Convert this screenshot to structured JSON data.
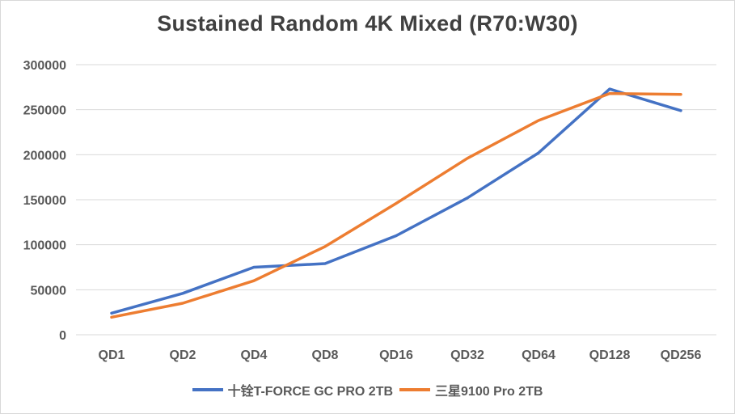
{
  "chart_data": {
    "type": "line",
    "title": "Sustained Random 4K Mixed (R70:W30)",
    "categories": [
      "QD1",
      "QD2",
      "QD4",
      "QD8",
      "QD16",
      "QD32",
      "QD64",
      "QD128",
      "QD256"
    ],
    "ylim": [
      0,
      300000
    ],
    "yticks": [
      "0",
      "50000",
      "100000",
      "150000",
      "200000",
      "250000",
      "300000"
    ],
    "grid": true,
    "legend_position": "bottom",
    "series": [
      {
        "name": "十铨T-FORCE GC PRO 2TB",
        "color": "#4472c4",
        "values": [
          24000,
          46000,
          75000,
          79000,
          110000,
          152000,
          202000,
          273000,
          249000
        ]
      },
      {
        "name": "三星9100 Pro 2TB",
        "color": "#ed7d31",
        "values": [
          19500,
          35000,
          60000,
          98000,
          146000,
          196000,
          238000,
          268000,
          267000
        ]
      }
    ]
  }
}
